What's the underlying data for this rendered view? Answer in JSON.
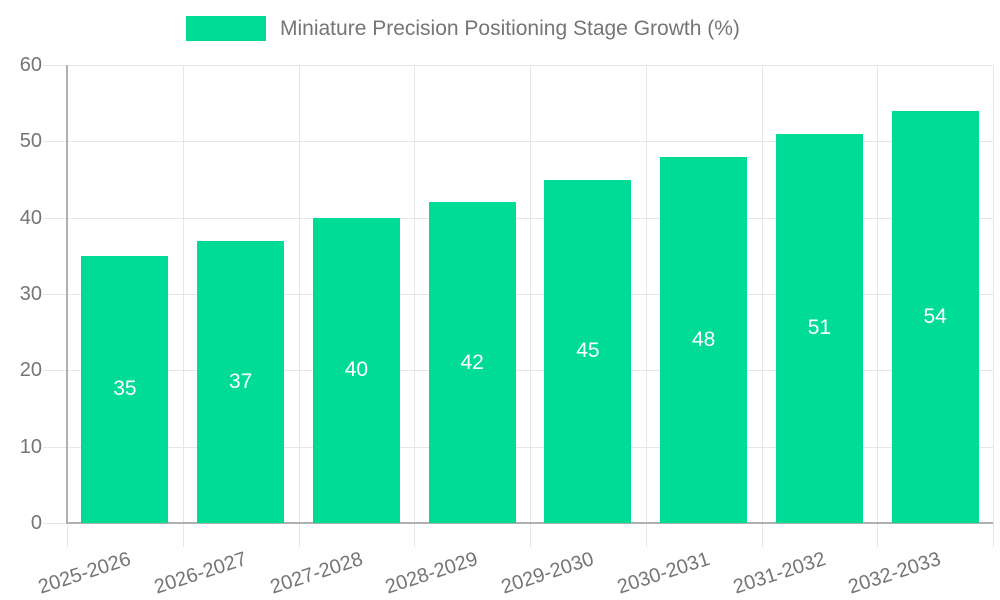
{
  "legend": {
    "label": "Miniature Precision Positioning Stage Growth (%)"
  },
  "colors": {
    "bar": "#00DC96",
    "grid": "#e6e6e6",
    "axis": "#b0b0b0",
    "tick_text": "#757575",
    "bar_label_text": "#ffffff",
    "background": "#ffffff"
  },
  "chart_data": {
    "type": "bar",
    "title": "Miniature Precision Positioning Stage Growth (%)",
    "categories": [
      "2025-2026",
      "2026-2027",
      "2027-2028",
      "2028-2029",
      "2029-2030",
      "2030-2031",
      "2031-2032",
      "2032-2033"
    ],
    "values": [
      35,
      37,
      40,
      42,
      45,
      48,
      51,
      54
    ],
    "xlabel": "",
    "ylabel": "",
    "ylim": [
      0,
      60
    ],
    "yticks": [
      0,
      10,
      20,
      30,
      40,
      50,
      60
    ],
    "grid": true,
    "legend_position": "top",
    "bar_value_labels": "inside-center",
    "x_tick_rotation_deg": -18
  }
}
